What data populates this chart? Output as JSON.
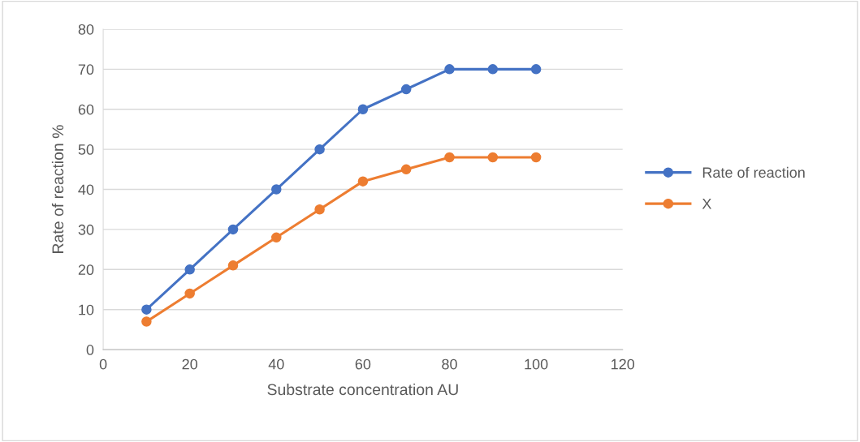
{
  "chart_data": {
    "type": "line",
    "xlabel": "Substrate concentration AU",
    "ylabel": "Rate of reaction %",
    "x": [
      10,
      20,
      30,
      40,
      50,
      60,
      70,
      80,
      90,
      100
    ],
    "series": [
      {
        "name": "Rate of reaction",
        "color": "#4472c4",
        "values": [
          10,
          20,
          30,
          40,
          50,
          60,
          65,
          70,
          70,
          70
        ]
      },
      {
        "name": "X",
        "color": "#ed7d31",
        "values": [
          7,
          14,
          21,
          28,
          35,
          42,
          45,
          48,
          48,
          48
        ]
      }
    ],
    "xlim": [
      0,
      120
    ],
    "xticks": [
      0,
      20,
      40,
      60,
      80,
      100,
      120
    ],
    "ylim": [
      0,
      80
    ],
    "yticks": [
      0,
      10,
      20,
      30,
      40,
      50,
      60,
      70,
      80
    ],
    "grid": "y",
    "legend": "right",
    "marker": "circle",
    "line_style": "solid"
  }
}
